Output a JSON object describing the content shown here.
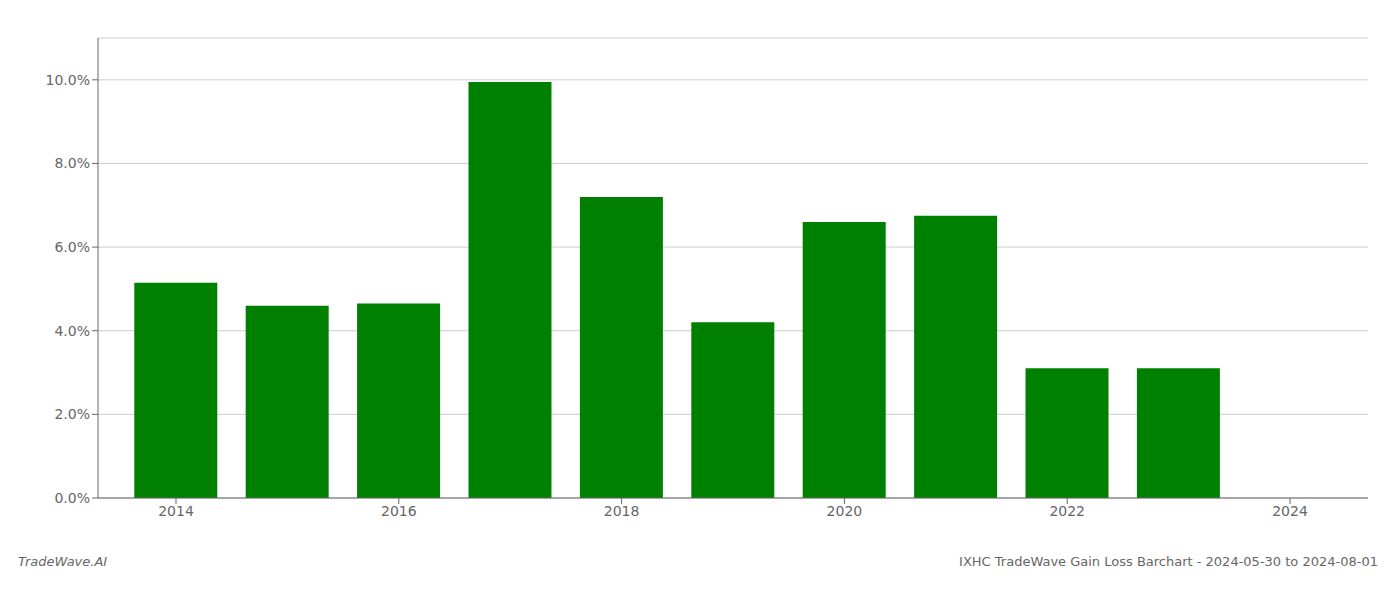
{
  "chart_data": {
    "type": "bar",
    "title": "IXHC TradeWave Gain Loss Barchart - 2024-05-30 to 2024-08-01",
    "annotations": [
      "TradeWave.AI"
    ],
    "x": [
      2014,
      2015,
      2016,
      2017,
      2018,
      2019,
      2020,
      2021,
      2022,
      2023
    ],
    "values": [
      0.0515,
      0.046,
      0.0465,
      0.0995,
      0.072,
      0.042,
      0.066,
      0.0675,
      0.031,
      0.031
    ],
    "color": "#008000",
    "xlim": [
      2013.3,
      2024.7
    ],
    "xticks": [
      2014,
      2016,
      2018,
      2020,
      2022,
      2024
    ],
    "ylim": [
      0,
      0.11
    ],
    "yticks": [
      {
        "value": 0.0,
        "label": "0.0%"
      },
      {
        "value": 0.02,
        "label": "2.0%"
      },
      {
        "value": 0.04,
        "label": "4.0%"
      },
      {
        "value": 0.06,
        "label": "6.0%"
      },
      {
        "value": 0.08,
        "label": "8.0%"
      },
      {
        "value": 0.1,
        "label": "10.0%"
      }
    ],
    "grid": true
  }
}
